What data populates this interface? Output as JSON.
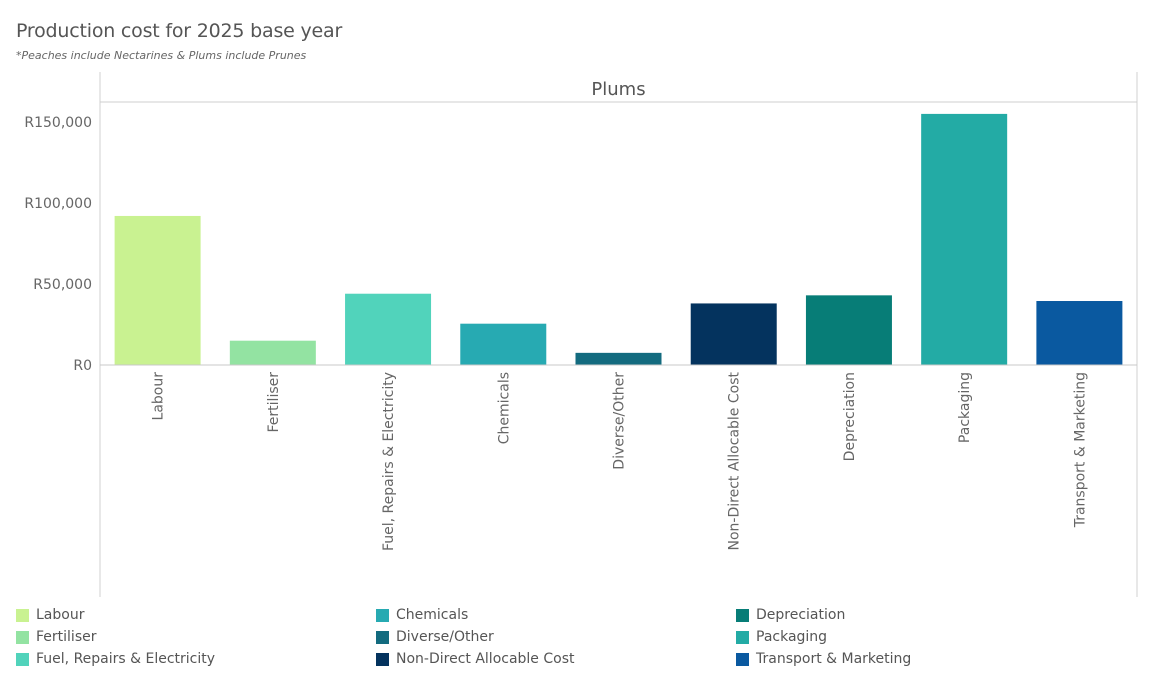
{
  "header": {
    "title": "Production cost for 2025 base year",
    "subtitle": "*Peaches include Nectarines & Plums include Prunes"
  },
  "chart_data": {
    "type": "bar",
    "panel_title": "Plums",
    "categories": [
      "Labour",
      "Fertiliser",
      "Fuel, Repairs & Electricity",
      "Chemicals",
      "Diverse/Other",
      "Non-Direct Allocable Cost",
      "Depreciation",
      "Packaging",
      "Transport & Marketing"
    ],
    "values": [
      92000,
      15000,
      44000,
      25500,
      7500,
      38000,
      43000,
      155000,
      39500
    ],
    "colors": [
      "#c9f291",
      "#93e3a2",
      "#51d3bb",
      "#27aab2",
      "#136b7f",
      "#04335e",
      "#077d77",
      "#23aba5",
      "#0a59a0"
    ],
    "ylim": [
      0,
      165000
    ],
    "yticks": [
      0,
      50000,
      100000,
      150000
    ],
    "ytick_labels": [
      "R0",
      "R50,000",
      "R100,000",
      "R150,000"
    ],
    "xlabel": "",
    "ylabel": ""
  },
  "legend": {
    "items": [
      {
        "label": "Labour",
        "color": "#c9f291"
      },
      {
        "label": "Fertiliser",
        "color": "#93e3a2"
      },
      {
        "label": "Fuel, Repairs & Electricity",
        "color": "#51d3bb"
      },
      {
        "label": "Chemicals",
        "color": "#27aab2"
      },
      {
        "label": "Diverse/Other",
        "color": "#136b7f"
      },
      {
        "label": "Non-Direct Allocable Cost",
        "color": "#04335e"
      },
      {
        "label": "Depreciation",
        "color": "#077d77"
      },
      {
        "label": "Packaging",
        "color": "#23aba5"
      },
      {
        "label": "Transport & Marketing",
        "color": "#0a59a0"
      }
    ]
  }
}
